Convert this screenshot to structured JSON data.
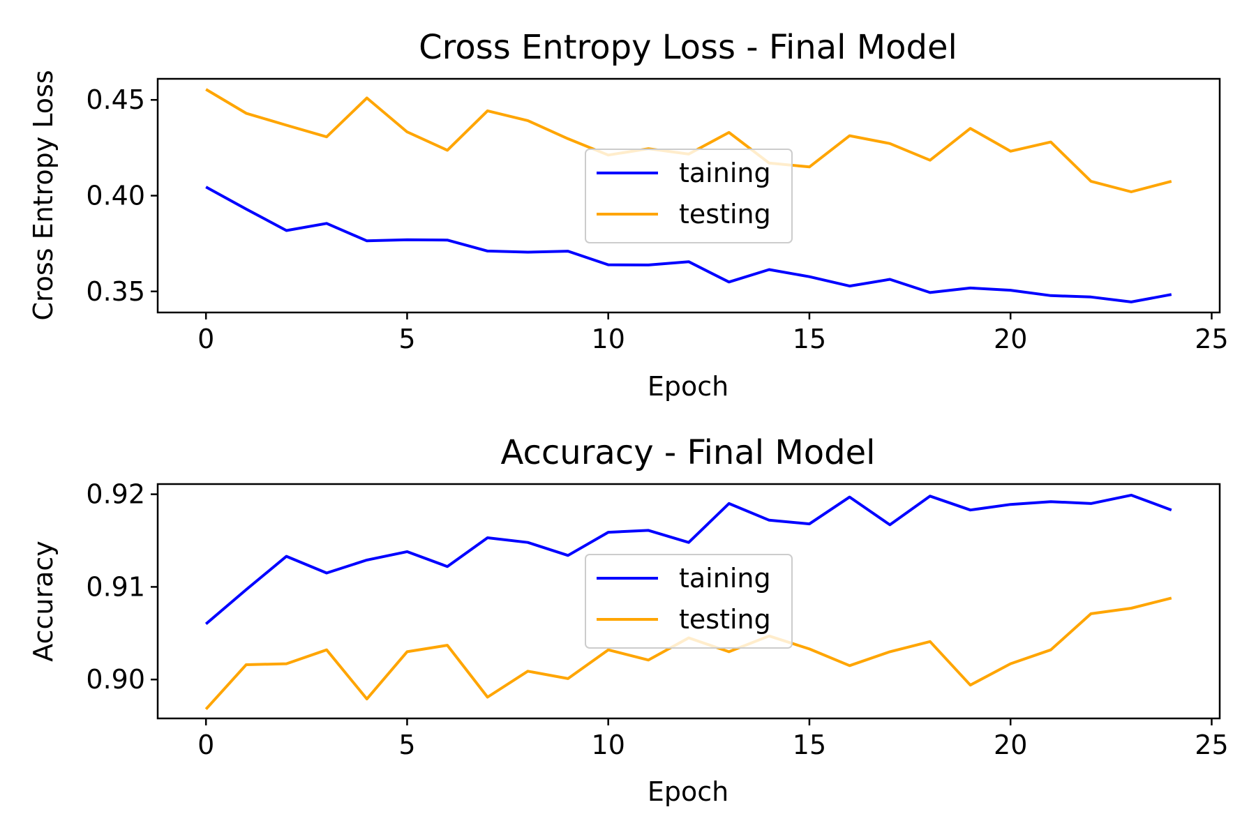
{
  "chart_data": [
    {
      "type": "line",
      "title": "Cross Entropy Loss - Final Model",
      "xlabel": "Epoch",
      "ylabel": "Cross Entropy Loss",
      "xlim": [
        -1.2,
        25.2
      ],
      "ylim": [
        0.339,
        0.461
      ],
      "xticks": [
        0,
        5,
        10,
        15,
        20,
        25
      ],
      "xtick_labels": [
        "0",
        "5",
        "10",
        "15",
        "20",
        "25"
      ],
      "yticks": [
        0.35,
        0.4,
        0.45
      ],
      "ytick_labels": [
        "0.35",
        "0.40",
        "0.45"
      ],
      "legend_position": "center",
      "x": [
        0,
        1,
        2,
        3,
        4,
        5,
        6,
        7,
        8,
        9,
        10,
        11,
        12,
        13,
        14,
        15,
        16,
        17,
        18,
        19,
        20,
        21,
        22,
        23,
        24
      ],
      "series": [
        {
          "name": "taining",
          "color": "#0000ff",
          "values": [
            0.4045,
            0.393,
            0.3818,
            0.3855,
            0.3764,
            0.377,
            0.3768,
            0.3711,
            0.3705,
            0.371,
            0.3639,
            0.3638,
            0.3655,
            0.3549,
            0.3614,
            0.3577,
            0.3528,
            0.3563,
            0.3494,
            0.3518,
            0.3506,
            0.3478,
            0.3471,
            0.3445,
            0.3484
          ]
        },
        {
          "name": "testing",
          "color": "#ffa500",
          "values": [
            0.4555,
            0.443,
            0.4368,
            0.4307,
            0.451,
            0.4333,
            0.4237,
            0.4443,
            0.4392,
            0.4297,
            0.4212,
            0.4245,
            0.4217,
            0.433,
            0.417,
            0.415,
            0.4313,
            0.4272,
            0.4185,
            0.4351,
            0.4232,
            0.428,
            0.4075,
            0.402,
            0.4075
          ]
        }
      ]
    },
    {
      "type": "line",
      "title": "Accuracy - Final Model",
      "xlabel": "Epoch",
      "ylabel": "Accuracy",
      "xlim": [
        -1.2,
        25.2
      ],
      "ylim": [
        0.8958,
        0.9211
      ],
      "xticks": [
        0,
        5,
        10,
        15,
        20,
        25
      ],
      "xtick_labels": [
        "0",
        "5",
        "10",
        "15",
        "20",
        "25"
      ],
      "yticks": [
        0.9,
        0.91,
        0.92
      ],
      "ytick_labels": [
        "0.90",
        "0.91",
        "0.92"
      ],
      "legend_position": "center",
      "x": [
        0,
        1,
        2,
        3,
        4,
        5,
        6,
        7,
        8,
        9,
        10,
        11,
        12,
        13,
        14,
        15,
        16,
        17,
        18,
        19,
        20,
        21,
        22,
        23,
        24
      ],
      "series": [
        {
          "name": "taining",
          "color": "#0000ff",
          "values": [
            0.906,
            0.9097,
            0.9133,
            0.9115,
            0.9129,
            0.9138,
            0.9122,
            0.9153,
            0.9148,
            0.9134,
            0.9159,
            0.9161,
            0.9148,
            0.919,
            0.9172,
            0.9168,
            0.9197,
            0.9167,
            0.9198,
            0.9183,
            0.9189,
            0.9192,
            0.919,
            0.9199,
            0.9183
          ]
        },
        {
          "name": "testing",
          "color": "#ffa500",
          "values": [
            0.8968,
            0.9016,
            0.9017,
            0.9032,
            0.8979,
            0.903,
            0.9037,
            0.8981,
            0.9009,
            0.9001,
            0.9032,
            0.9021,
            0.9045,
            0.903,
            0.9047,
            0.9033,
            0.9015,
            0.903,
            0.9041,
            0.8994,
            0.9017,
            0.9032,
            0.9071,
            0.9077,
            0.9088
          ]
        }
      ]
    }
  ]
}
